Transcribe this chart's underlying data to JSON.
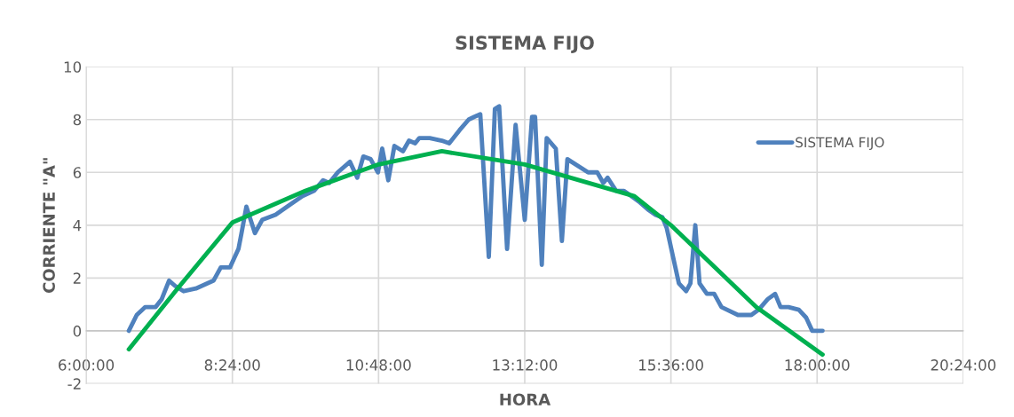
{
  "chart_data": {
    "type": "line",
    "title": "SISTEMA FIJO",
    "xlabel": "HORA",
    "ylabel": "CORRIENTE \"A\"",
    "xlim": [
      6,
      20.4
    ],
    "xticks": [
      {
        "value": 6,
        "label": "6:00:00"
      },
      {
        "value": 8.4,
        "label": "8:24:00"
      },
      {
        "value": 10.8,
        "label": "10:48:00"
      },
      {
        "value": 13.2,
        "label": "13:12:00"
      },
      {
        "value": 15.6,
        "label": "15:36:00"
      },
      {
        "value": 18,
        "label": "18:00:00"
      },
      {
        "value": 20.4,
        "label": "20:24:00"
      }
    ],
    "ylim": [
      -2,
      10
    ],
    "yticks": [
      -2,
      0,
      2,
      4,
      6,
      8,
      10
    ],
    "grid": true,
    "legend": "top right",
    "series": [
      {
        "name": "SISTEMA FIJO",
        "color": "#4f81bd",
        "x": [
          6.7,
          6.83,
          6.97,
          7.14,
          7.24,
          7.36,
          7.46,
          7.6,
          7.8,
          8.09,
          8.21,
          8.36,
          8.5,
          8.55,
          8.63,
          8.77,
          8.89,
          9.11,
          9.36,
          9.55,
          9.74,
          9.89,
          9.99,
          10.13,
          10.33,
          10.45,
          10.55,
          10.67,
          10.79,
          10.86,
          10.96,
          11.06,
          11.2,
          11.3,
          11.4,
          11.47,
          11.64,
          11.84,
          11.96,
          12.13,
          12.28,
          12.37,
          12.47,
          12.61,
          12.71,
          12.78,
          12.91,
          13.05,
          13.2,
          13.32,
          13.37,
          13.48,
          13.56,
          13.71,
          13.81,
          13.9,
          14.24,
          14.39,
          14.49,
          14.56,
          14.7,
          14.83,
          14.95,
          15.07,
          15.22,
          15.34,
          15.46,
          15.53,
          15.73,
          15.85,
          15.92,
          16.0,
          16.07,
          16.19,
          16.31,
          16.43,
          16.7,
          16.92,
          17.04,
          17.19,
          17.31,
          17.4,
          17.53,
          17.7,
          17.82,
          17.92,
          18.09
        ],
        "values": [
          0.0,
          0.6,
          0.9,
          0.9,
          1.2,
          1.9,
          1.7,
          1.5,
          1.6,
          1.9,
          2.4,
          2.4,
          3.1,
          3.7,
          4.7,
          3.7,
          4.2,
          4.4,
          4.8,
          5.1,
          5.3,
          5.7,
          5.6,
          6.0,
          6.4,
          5.8,
          6.6,
          6.5,
          6.0,
          6.9,
          5.7,
          7.0,
          6.8,
          7.2,
          7.1,
          7.3,
          7.3,
          7.2,
          7.1,
          7.6,
          8.0,
          8.1,
          8.2,
          2.8,
          8.4,
          8.5,
          3.1,
          7.8,
          4.2,
          8.1,
          8.1,
          2.5,
          7.3,
          6.9,
          3.4,
          6.5,
          6.0,
          6.0,
          5.6,
          5.8,
          5.3,
          5.3,
          5.1,
          4.9,
          4.6,
          4.4,
          4.3,
          3.9,
          1.8,
          1.5,
          1.8,
          4.0,
          1.8,
          1.4,
          1.4,
          0.9,
          0.6,
          0.6,
          0.8,
          1.2,
          1.4,
          0.9,
          0.9,
          0.8,
          0.5,
          0.0,
          0.0
        ]
      },
      {
        "color": "#00b050",
        "x": [
          6.7,
          7.5,
          8.4,
          9.6,
          10.8,
          11.84,
          13.2,
          15.0,
          15.6,
          17.0,
          18.09
        ],
        "values": [
          -0.7,
          1.6,
          4.1,
          5.3,
          6.3,
          6.8,
          6.3,
          5.1,
          4.0,
          0.9,
          -0.9
        ]
      }
    ]
  }
}
